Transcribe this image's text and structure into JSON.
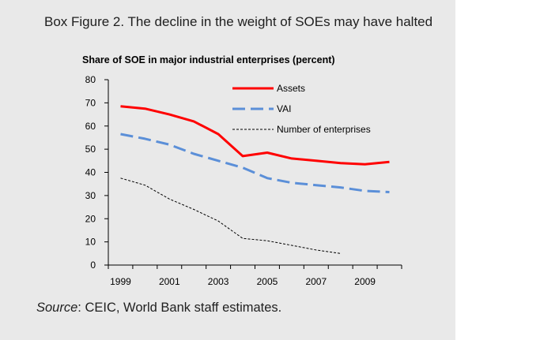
{
  "figure": {
    "title": "Box Figure 2. The decline in the weight of SOEs may have halted",
    "source_prefix": "Source",
    "source_text": ": CEIC, World Bank staff estimates."
  },
  "chart_data": {
    "type": "line",
    "title": "Share of SOE in major industrial enterprises (percent)",
    "xlabel": "",
    "ylabel": "",
    "x": [
      1999,
      2000,
      2001,
      2002,
      2003,
      2004,
      2005,
      2006,
      2007,
      2008,
      2009,
      2010
    ],
    "xticks": [
      1999,
      2001,
      2003,
      2005,
      2007,
      2009
    ],
    "ylim": [
      0,
      80
    ],
    "yticks": [
      0,
      10,
      20,
      30,
      40,
      50,
      60,
      70,
      80
    ],
    "grid": false,
    "legend": "top-right",
    "series": [
      {
        "name": "Assets",
        "style": "solid",
        "color": "#ff0000",
        "values": [
          68.5,
          67.5,
          65,
          62,
          56.5,
          47,
          48.5,
          46,
          45,
          44,
          43.5,
          44.5
        ]
      },
      {
        "name": "VAI",
        "style": "dashed",
        "color": "#5b8fd8",
        "values": [
          56.5,
          54.5,
          52,
          48,
          45,
          42,
          37.5,
          35.5,
          34.5,
          33.5,
          32,
          31.5
        ]
      },
      {
        "name": "Number of enterprises",
        "style": "dotted",
        "color": "#000000",
        "values": [
          37.5,
          34.5,
          28.5,
          24,
          19,
          11.5,
          10.5,
          8.5,
          6.5,
          5,
          null,
          null
        ]
      }
    ]
  }
}
